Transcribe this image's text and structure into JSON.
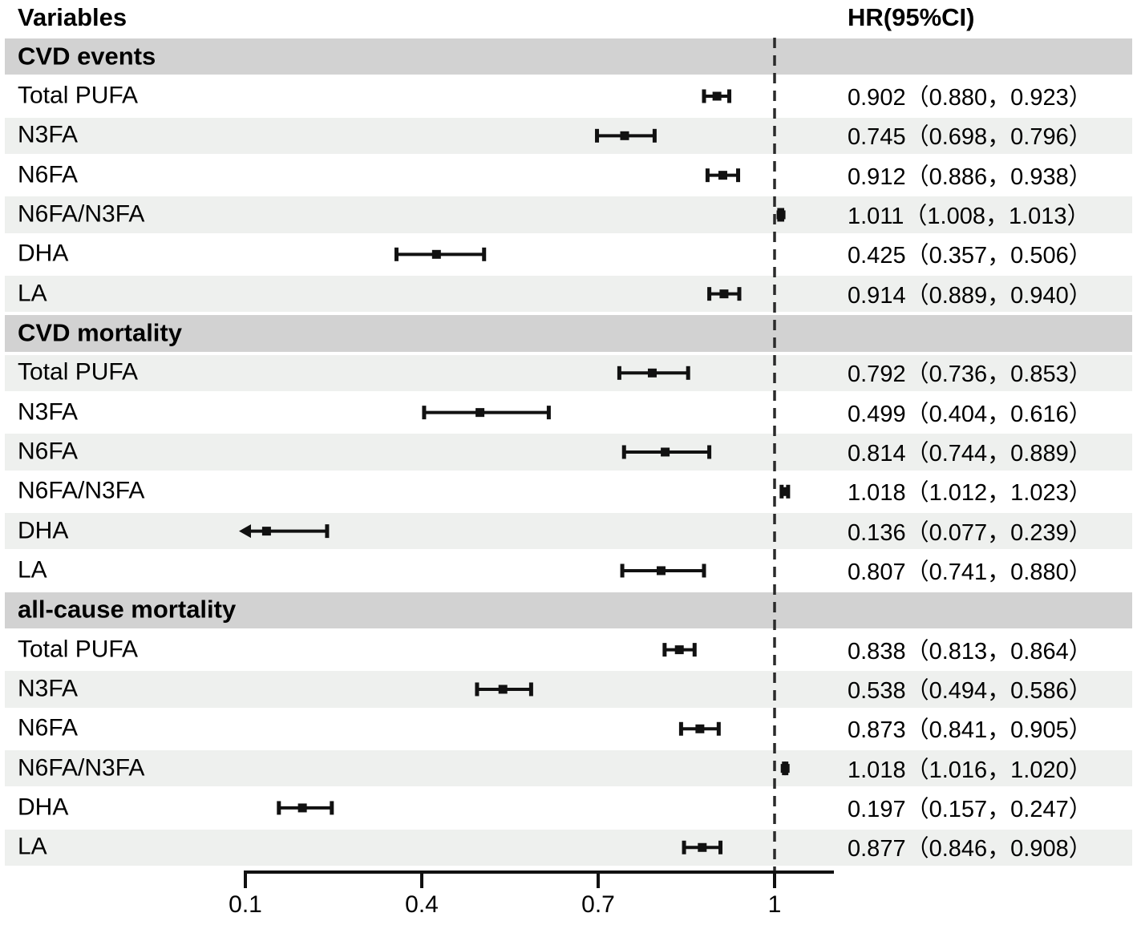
{
  "title_row": {
    "variables": "Variables",
    "hr": "HR(95%CI)"
  },
  "colors": {
    "section_band": "#d2d2d2",
    "alt_band": "#eef0ee",
    "marker": "#111111",
    "axis": "#111111",
    "reference_line": "#2a2a2a",
    "text": "#000000"
  },
  "chart_data": {
    "type": "forest",
    "title": "",
    "xlabel": "",
    "axis_ticks": [
      {
        "value": 0.1,
        "label": "0.1"
      },
      {
        "value": 0.4,
        "label": "0.4"
      },
      {
        "value": 0.7,
        "label": "0.7"
      },
      {
        "value": 1.0,
        "label": "1"
      }
    ],
    "x_range": [
      0.1,
      1.1
    ],
    "reference_line": 1.0,
    "legend": "none",
    "grid": "off",
    "sections": [
      {
        "title": "CVD events",
        "rows": [
          {
            "label": "Total PUFA",
            "hr": 0.902,
            "ci_low": 0.88,
            "ci_high": 0.923,
            "text": "0.902（0.880，0.923）",
            "alt": false,
            "clip_low": false
          },
          {
            "label": "N3FA",
            "hr": 0.745,
            "ci_low": 0.698,
            "ci_high": 0.796,
            "text": "0.745（0.698，0.796）",
            "alt": true,
            "clip_low": false
          },
          {
            "label": "N6FA",
            "hr": 0.912,
            "ci_low": 0.886,
            "ci_high": 0.938,
            "text": "0.912（0.886，0.938）",
            "alt": false,
            "clip_low": false
          },
          {
            "label": "N6FA/N3FA",
            "hr": 1.011,
            "ci_low": 1.008,
            "ci_high": 1.013,
            "text": "1.011（1.008，1.013）",
            "alt": true,
            "clip_low": false
          },
          {
            "label": "DHA",
            "hr": 0.425,
            "ci_low": 0.357,
            "ci_high": 0.506,
            "text": "0.425（0.357，0.506）",
            "alt": false,
            "clip_low": false
          },
          {
            "label": "LA",
            "hr": 0.914,
            "ci_low": 0.889,
            "ci_high": 0.94,
            "text": "0.914（0.889，0.940）",
            "alt": true,
            "clip_low": false
          }
        ]
      },
      {
        "title": "CVD mortality",
        "rows": [
          {
            "label": "Total PUFA",
            "hr": 0.792,
            "ci_low": 0.736,
            "ci_high": 0.853,
            "text": "0.792（0.736，0.853）",
            "alt": true,
            "clip_low": false
          },
          {
            "label": "N3FA",
            "hr": 0.499,
            "ci_low": 0.404,
            "ci_high": 0.616,
            "text": "0.499（0.404，0.616）",
            "alt": false,
            "clip_low": false
          },
          {
            "label": "N6FA",
            "hr": 0.814,
            "ci_low": 0.744,
            "ci_high": 0.889,
            "text": "0.814（0.744，0.889）",
            "alt": true,
            "clip_low": false
          },
          {
            "label": "N6FA/N3FA",
            "hr": 1.018,
            "ci_low": 1.012,
            "ci_high": 1.023,
            "text": "1.018（1.012，1.023）",
            "alt": false,
            "clip_low": false
          },
          {
            "label": "DHA",
            "hr": 0.136,
            "ci_low": 0.077,
            "ci_high": 0.239,
            "text": "0.136（0.077，0.239）",
            "alt": true,
            "clip_low": true
          },
          {
            "label": "LA",
            "hr": 0.807,
            "ci_low": 0.741,
            "ci_high": 0.88,
            "text": "0.807（0.741，0.880）",
            "alt": false,
            "clip_low": false
          }
        ]
      },
      {
        "title": "all-cause mortality",
        "rows": [
          {
            "label": "Total PUFA",
            "hr": 0.838,
            "ci_low": 0.813,
            "ci_high": 0.864,
            "text": "0.838（0.813，0.864）",
            "alt": false,
            "clip_low": false
          },
          {
            "label": "N3FA",
            "hr": 0.538,
            "ci_low": 0.494,
            "ci_high": 0.586,
            "text": "0.538（0.494，0.586）",
            "alt": true,
            "clip_low": false
          },
          {
            "label": "N6FA",
            "hr": 0.873,
            "ci_low": 0.841,
            "ci_high": 0.905,
            "text": "0.873（0.841，0.905）",
            "alt": false,
            "clip_low": false
          },
          {
            "label": "N6FA/N3FA",
            "hr": 1.018,
            "ci_low": 1.016,
            "ci_high": 1.02,
            "text": "1.018（1.016，1.020）",
            "alt": true,
            "clip_low": false
          },
          {
            "label": "DHA",
            "hr": 0.197,
            "ci_low": 0.157,
            "ci_high": 0.247,
            "text": "0.197（0.157，0.247）",
            "alt": false,
            "clip_low": false
          },
          {
            "label": "LA",
            "hr": 0.877,
            "ci_low": 0.846,
            "ci_high": 0.908,
            "text": "0.877（0.846，0.908）",
            "alt": true,
            "clip_low": false
          }
        ]
      }
    ]
  }
}
